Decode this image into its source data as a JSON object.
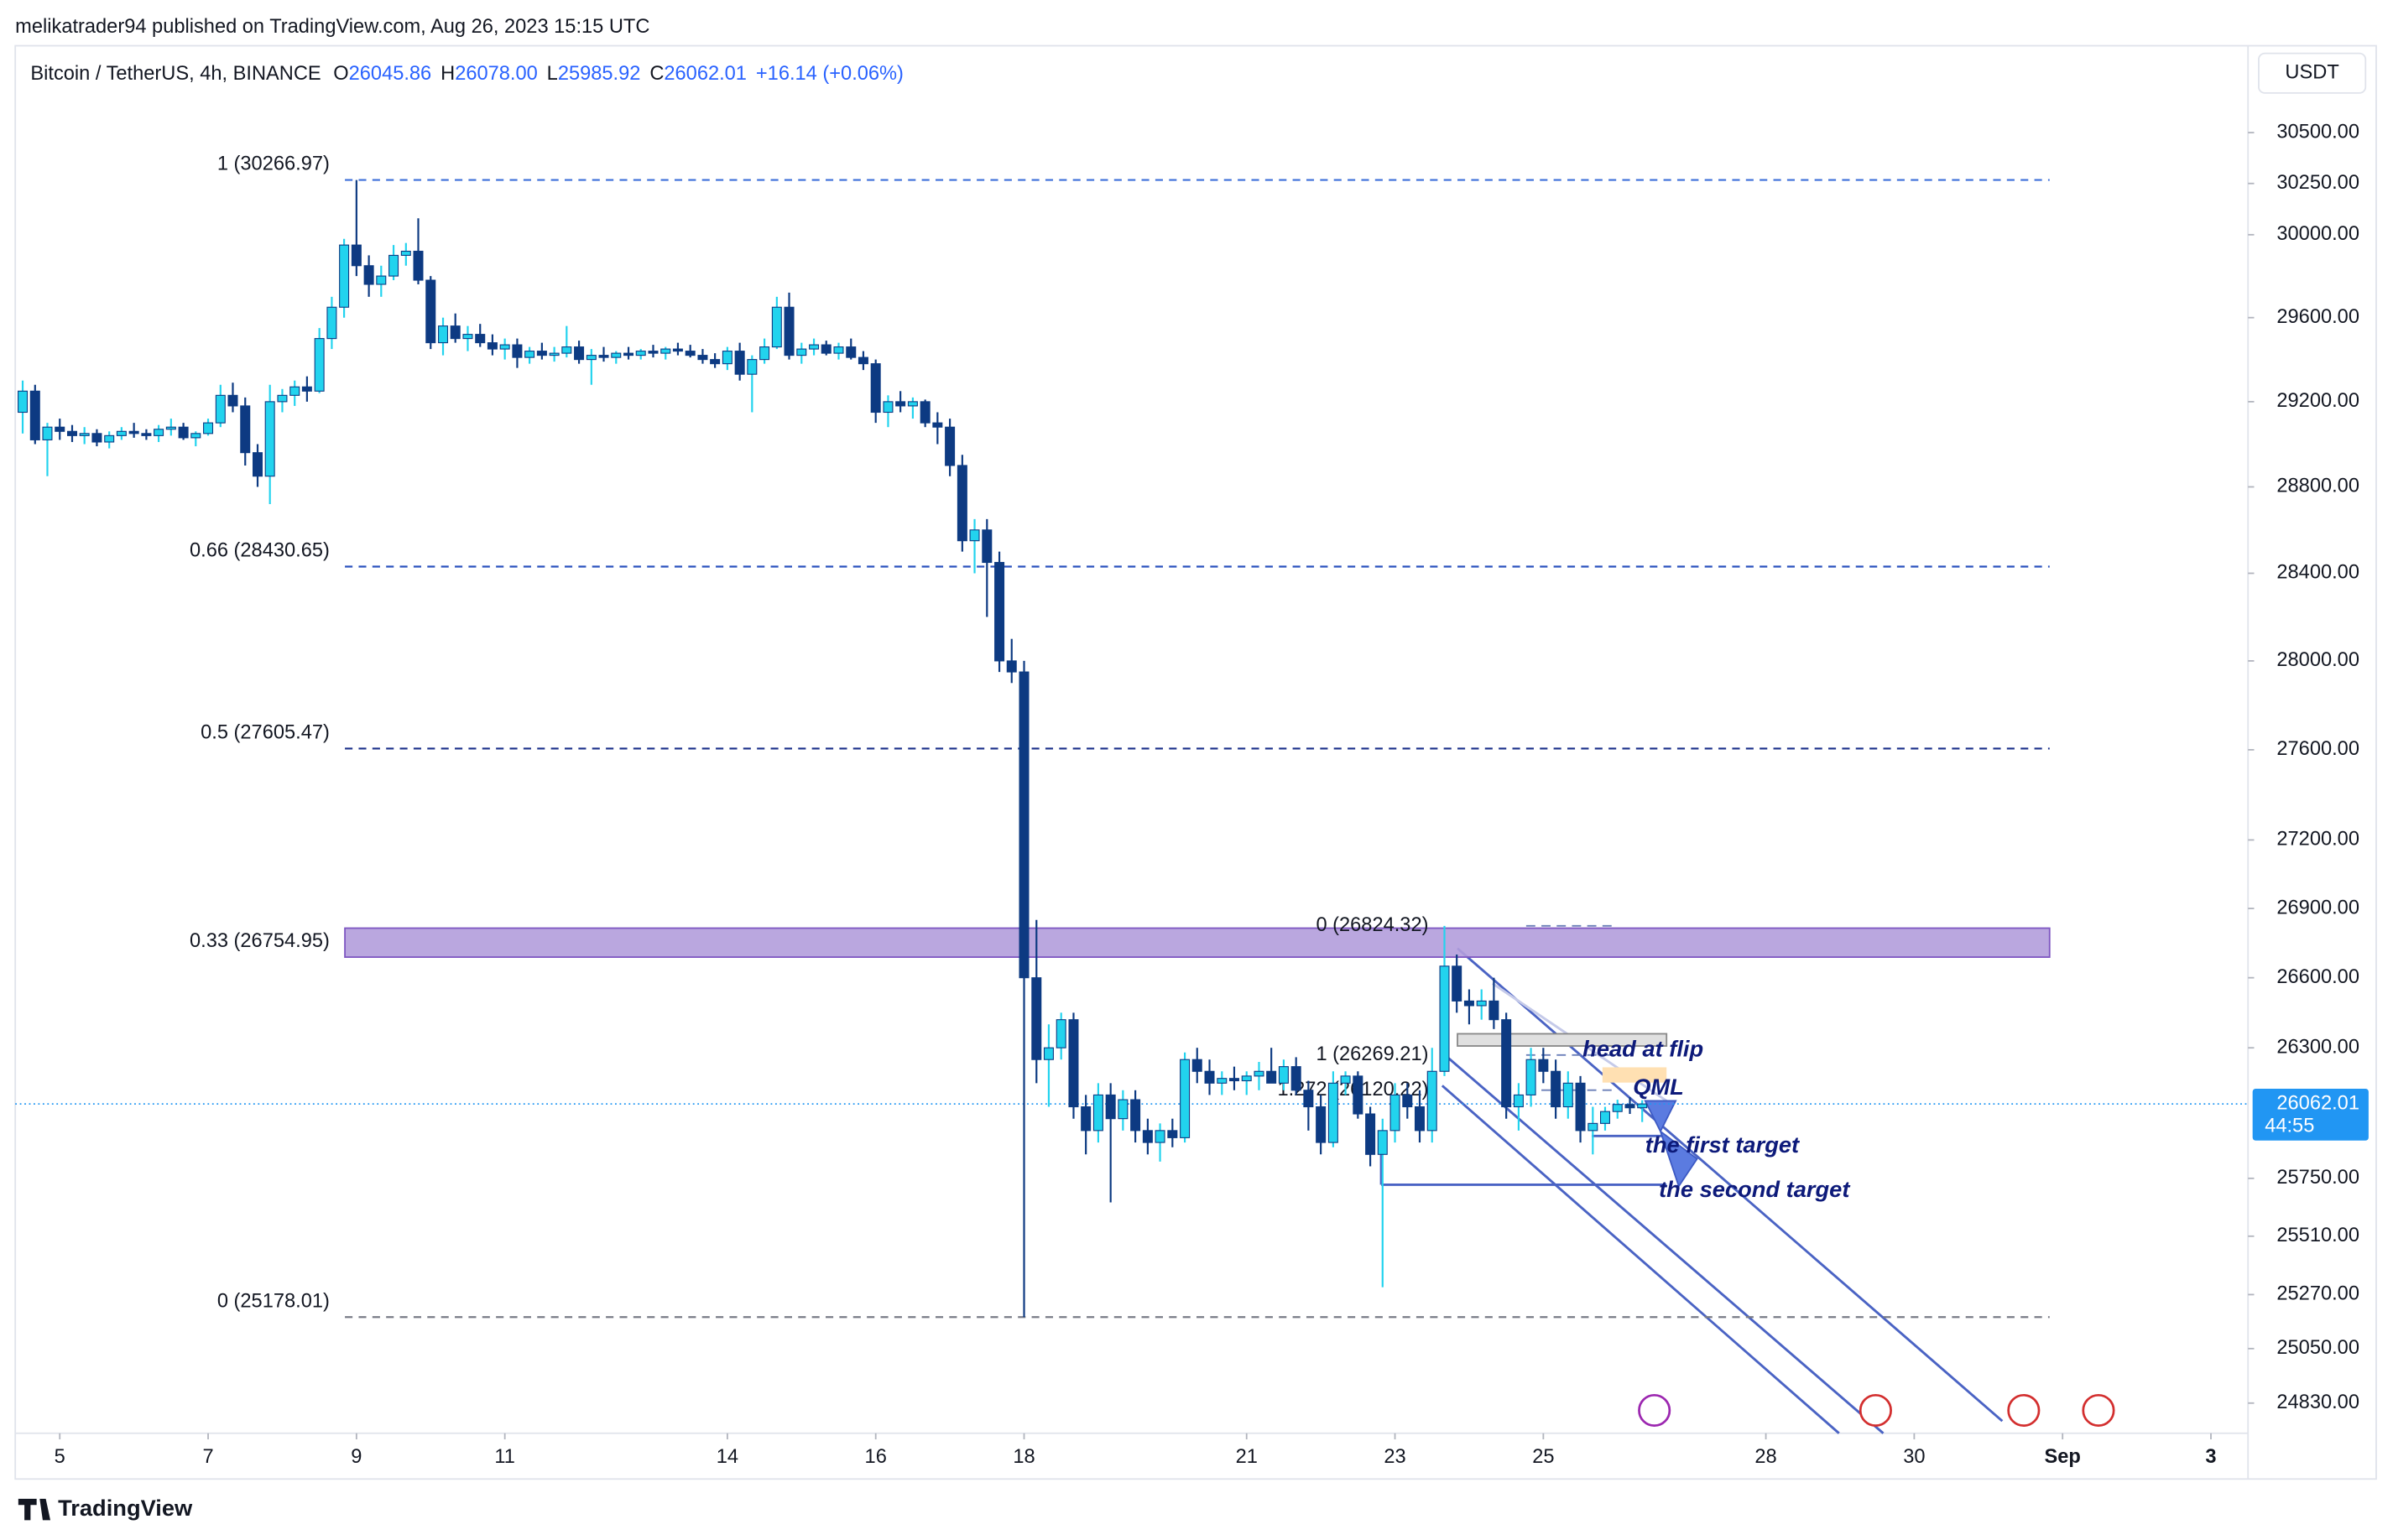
{
  "header": {
    "publisher": "melikatrader94 published on TradingView.com, Aug 26, 2023 15:15 UTC",
    "symbol": "Bitcoin / TetherUS, 4h, BINANCE",
    "ohlc": [
      {
        "key": "O",
        "value": "26045.86"
      },
      {
        "key": "H",
        "value": "26078.00"
      },
      {
        "key": "L",
        "value": "25985.92"
      },
      {
        "key": "C",
        "value": "26062.01"
      }
    ],
    "change": "+16.14 (+0.06%)",
    "currency": "USDT"
  },
  "chart_data": {
    "type": "candlestick",
    "log_scale": true,
    "up_color": "#22d3ee",
    "down_color": "#0d3a82",
    "xlim": [
      4.4,
      34.5
    ],
    "ylim": [
      24709,
      30932
    ],
    "xticks": [
      5,
      7,
      9,
      11,
      14,
      16,
      18,
      21,
      23,
      25,
      28,
      30,
      {
        "value": 32,
        "label": "Sep"
      },
      {
        "value": 34,
        "label": "3"
      }
    ],
    "yticks": [
      {
        "value": 30500,
        "label": "30500.00"
      },
      {
        "value": 30250,
        "label": "30250.00"
      },
      {
        "value": 30000,
        "label": "30000.00"
      },
      {
        "value": 29600,
        "label": "29600.00"
      },
      {
        "value": 29200,
        "label": "29200.00"
      },
      {
        "value": 28800,
        "label": "28800.00"
      },
      {
        "value": 28400,
        "label": "28400.00"
      },
      {
        "value": 28000,
        "label": "28000.00"
      },
      {
        "value": 27600,
        "label": "27600.00"
      },
      {
        "value": 27200,
        "label": "27200.00"
      },
      {
        "value": 26900,
        "label": "26900.00"
      },
      {
        "value": 26600,
        "label": "26600.00"
      },
      {
        "value": 26300,
        "label": "26300.00"
      },
      {
        "value": 25750,
        "label": "25750.00"
      },
      {
        "value": 25510,
        "label": "25510.00"
      },
      {
        "value": 25270,
        "label": "25270.00"
      },
      {
        "value": 25050,
        "label": "25050.00"
      },
      {
        "value": 24830,
        "label": "24830.00"
      }
    ],
    "candles": [
      [
        4.5,
        29150,
        29300,
        29050,
        29250
      ],
      [
        4.667,
        29250,
        29280,
        29000,
        29020
      ],
      [
        4.833,
        29020,
        29100,
        28850,
        29080
      ],
      [
        5,
        29080,
        29120,
        29020,
        29060
      ],
      [
        5.167,
        29060,
        29090,
        29010,
        29040
      ],
      [
        5.333,
        29040,
        29080,
        29000,
        29050
      ],
      [
        5.5,
        29050,
        29070,
        28990,
        29010
      ],
      [
        5.667,
        29010,
        29060,
        28980,
        29040
      ],
      [
        5.833,
        29040,
        29080,
        29020,
        29060
      ],
      [
        6,
        29060,
        29100,
        29030,
        29050
      ],
      [
        6.167,
        29050,
        29070,
        29020,
        29040
      ],
      [
        6.333,
        29040,
        29090,
        29010,
        29070
      ],
      [
        6.5,
        29070,
        29120,
        29040,
        29080
      ],
      [
        6.667,
        29080,
        29100,
        29020,
        29030
      ],
      [
        6.833,
        29030,
        29060,
        28990,
        29050
      ],
      [
        7,
        29050,
        29120,
        29040,
        29100
      ],
      [
        7.167,
        29100,
        29280,
        29080,
        29230
      ],
      [
        7.333,
        29230,
        29290,
        29150,
        29180
      ],
      [
        7.5,
        29180,
        29220,
        28900,
        28960
      ],
      [
        7.667,
        28960,
        29000,
        28800,
        28850
      ],
      [
        7.833,
        28850,
        29280,
        28720,
        29200
      ],
      [
        8,
        29200,
        29260,
        29150,
        29230
      ],
      [
        8.167,
        29230,
        29300,
        29180,
        29270
      ],
      [
        8.333,
        29270,
        29320,
        29200,
        29250
      ],
      [
        8.5,
        29250,
        29550,
        29240,
        29500
      ],
      [
        8.667,
        29500,
        29700,
        29450,
        29650
      ],
      [
        8.833,
        29650,
        29980,
        29600,
        29950
      ],
      [
        9,
        29950,
        30266.97,
        29800,
        29850
      ],
      [
        9.167,
        29850,
        29900,
        29700,
        29760
      ],
      [
        9.333,
        29760,
        29850,
        29700,
        29800
      ],
      [
        9.5,
        29800,
        29950,
        29780,
        29900
      ],
      [
        9.667,
        29900,
        29960,
        29850,
        29920
      ],
      [
        9.833,
        29920,
        30080,
        29760,
        29780
      ],
      [
        10,
        29780,
        29800,
        29450,
        29480
      ],
      [
        10.167,
        29480,
        29600,
        29420,
        29560
      ],
      [
        10.333,
        29560,
        29620,
        29480,
        29500
      ],
      [
        10.5,
        29500,
        29560,
        29440,
        29520
      ],
      [
        10.667,
        29520,
        29570,
        29460,
        29480
      ],
      [
        10.833,
        29480,
        29520,
        29420,
        29450
      ],
      [
        11,
        29450,
        29500,
        29400,
        29470
      ],
      [
        11.167,
        29470,
        29500,
        29360,
        29410
      ],
      [
        11.333,
        29410,
        29460,
        29380,
        29440
      ],
      [
        11.5,
        29440,
        29480,
        29400,
        29420
      ],
      [
        11.667,
        29420,
        29460,
        29390,
        29430
      ],
      [
        11.833,
        29430,
        29560,
        29410,
        29460
      ],
      [
        12,
        29460,
        29490,
        29380,
        29400
      ],
      [
        12.167,
        29400,
        29450,
        29280,
        29420
      ],
      [
        12.333,
        29420,
        29460,
        29390,
        29410
      ],
      [
        12.5,
        29410,
        29440,
        29380,
        29430
      ],
      [
        12.667,
        29430,
        29460,
        29400,
        29420
      ],
      [
        12.833,
        29420,
        29450,
        29400,
        29440
      ],
      [
        13,
        29440,
        29470,
        29410,
        29430
      ],
      [
        13.167,
        29430,
        29460,
        29400,
        29450
      ],
      [
        13.333,
        29450,
        29480,
        29420,
        29440
      ],
      [
        13.5,
        29440,
        29470,
        29410,
        29420
      ],
      [
        13.667,
        29420,
        29450,
        29380,
        29400
      ],
      [
        13.833,
        29400,
        29430,
        29360,
        29380
      ],
      [
        14,
        29380,
        29460,
        29350,
        29440
      ],
      [
        14.167,
        29440,
        29480,
        29300,
        29330
      ],
      [
        14.333,
        29330,
        29420,
        29150,
        29400
      ],
      [
        14.5,
        29400,
        29500,
        29380,
        29460
      ],
      [
        14.667,
        29460,
        29700,
        29450,
        29650
      ],
      [
        14.833,
        29650,
        29720,
        29400,
        29420
      ],
      [
        15,
        29420,
        29480,
        29380,
        29450
      ],
      [
        15.167,
        29450,
        29500,
        29420,
        29470
      ],
      [
        15.333,
        29470,
        29490,
        29420,
        29430
      ],
      [
        15.5,
        29430,
        29480,
        29400,
        29460
      ],
      [
        15.667,
        29460,
        29500,
        29400,
        29410
      ],
      [
        15.833,
        29410,
        29440,
        29350,
        29380
      ],
      [
        16,
        29380,
        29400,
        29100,
        29150
      ],
      [
        16.167,
        29150,
        29230,
        29080,
        29200
      ],
      [
        16.333,
        29200,
        29250,
        29150,
        29180
      ],
      [
        16.5,
        29180,
        29220,
        29120,
        29200
      ],
      [
        16.667,
        29200,
        29210,
        29080,
        29100
      ],
      [
        16.833,
        29100,
        29150,
        29000,
        29080
      ],
      [
        17,
        29080,
        29120,
        28850,
        28900
      ],
      [
        17.167,
        28900,
        28950,
        28500,
        28550
      ],
      [
        17.333,
        28550,
        28650,
        28400,
        28600
      ],
      [
        17.5,
        28600,
        28650,
        28200,
        28450
      ],
      [
        17.667,
        28450,
        28500,
        27950,
        28000
      ],
      [
        17.833,
        28000,
        28100,
        27900,
        27950
      ],
      [
        18,
        27950,
        28000,
        25178.01,
        26600
      ],
      [
        18.167,
        26600,
        26850,
        26150,
        26250
      ],
      [
        18.333,
        26250,
        26400,
        26050,
        26300
      ],
      [
        18.5,
        26300,
        26450,
        26250,
        26420
      ],
      [
        18.667,
        26420,
        26450,
        26000,
        26050
      ],
      [
        18.833,
        26050,
        26100,
        25850,
        25950
      ],
      [
        19,
        25950,
        26150,
        25900,
        26100
      ],
      [
        19.167,
        26100,
        26150,
        25650,
        26000
      ],
      [
        19.333,
        26000,
        26120,
        25950,
        26080
      ],
      [
        19.5,
        26080,
        26120,
        25900,
        25950
      ],
      [
        19.667,
        25950,
        26000,
        25850,
        25900
      ],
      [
        19.833,
        25900,
        25980,
        25820,
        25950
      ],
      [
        20,
        25950,
        26000,
        25880,
        25920
      ],
      [
        20.167,
        25920,
        26280,
        25900,
        26250
      ],
      [
        20.333,
        26250,
        26300,
        26150,
        26200
      ],
      [
        20.5,
        26200,
        26250,
        26100,
        26150
      ],
      [
        20.667,
        26150,
        26200,
        26100,
        26170
      ],
      [
        20.833,
        26170,
        26220,
        26120,
        26160
      ],
      [
        21,
        26160,
        26200,
        26100,
        26180
      ],
      [
        21.167,
        26180,
        26240,
        26120,
        26200
      ],
      [
        21.333,
        26200,
        26300,
        26150,
        26150
      ],
      [
        21.5,
        26150,
        26250,
        26120,
        26220
      ],
      [
        21.667,
        26220,
        26260,
        26100,
        26120
      ],
      [
        21.833,
        26120,
        26160,
        25950,
        26050
      ],
      [
        22,
        26050,
        26100,
        25850,
        25900
      ],
      [
        22.167,
        25900,
        26200,
        25880,
        26150
      ],
      [
        22.333,
        26150,
        26200,
        26100,
        26180
      ],
      [
        22.5,
        26180,
        26200,
        26000,
        26020
      ],
      [
        22.667,
        26020,
        26050,
        25800,
        25850
      ],
      [
        22.833,
        25850,
        26000,
        25300,
        25950
      ],
      [
        23,
        25950,
        26150,
        25900,
        26100
      ],
      [
        23.167,
        26100,
        26150,
        26000,
        26050
      ],
      [
        23.333,
        26050,
        26120,
        25900,
        25950
      ],
      [
        23.5,
        25950,
        26300,
        25900,
        26200
      ],
      [
        23.667,
        26200,
        26824.32,
        26180,
        26650
      ],
      [
        23.833,
        26650,
        26700,
        26450,
        26500
      ],
      [
        24,
        26500,
        26550,
        26400,
        26480
      ],
      [
        24.167,
        26480,
        26550,
        26420,
        26500
      ],
      [
        24.333,
        26500,
        26600,
        26380,
        26420
      ],
      [
        24.5,
        26420,
        26450,
        26000,
        26050
      ],
      [
        24.667,
        26050,
        26150,
        25950,
        26100
      ],
      [
        24.833,
        26100,
        26300,
        26050,
        26250
      ],
      [
        25,
        26250,
        26300,
        26150,
        26200
      ],
      [
        25.167,
        26200,
        26250,
        26000,
        26050
      ],
      [
        25.333,
        26050,
        26200,
        26000,
        26150
      ],
      [
        25.5,
        26150,
        26180,
        25900,
        25950
      ],
      [
        25.667,
        25950,
        26050,
        25850,
        25980
      ],
      [
        25.833,
        25980,
        26050,
        25950,
        26030
      ],
      [
        26,
        26030,
        26080,
        26000,
        26060
      ],
      [
        26.167,
        26060,
        26090,
        26020,
        26045.86
      ],
      [
        26.333,
        26045.86,
        26078,
        25985.92,
        26062.01
      ]
    ],
    "fib_levels": [
      {
        "label": "1 (30266.97)",
        "price": 30266.97,
        "color": "#3d6fd9"
      },
      {
        "label": "0.66 (28430.65)",
        "price": 28430.65,
        "color": "#2a52be"
      },
      {
        "label": "0.5 (27605.47)",
        "price": 27605.47,
        "color": "#1a2f8a"
      },
      {
        "label": "0.33 (26754.95)",
        "price": 26754.95,
        "color": "#1a2f8a"
      },
      {
        "label": "0 (25178.01)",
        "price": 25178.01,
        "color": "#787b86"
      }
    ],
    "fib_levels_2": [
      {
        "label": "0 (26824.32)",
        "price": 26824.32
      },
      {
        "label": "1 (26269.21)",
        "price": 26269.21
      },
      {
        "label": "1.272 (26120.22)",
        "price": 26120.22
      }
    ],
    "annotations": [
      "head at flip",
      "QML",
      "the first target",
      "the second target"
    ],
    "last_price": {
      "price": 26062.01,
      "countdown": "44:55",
      "color": "#2196f3"
    }
  },
  "footer": {
    "brand": "TradingView"
  }
}
